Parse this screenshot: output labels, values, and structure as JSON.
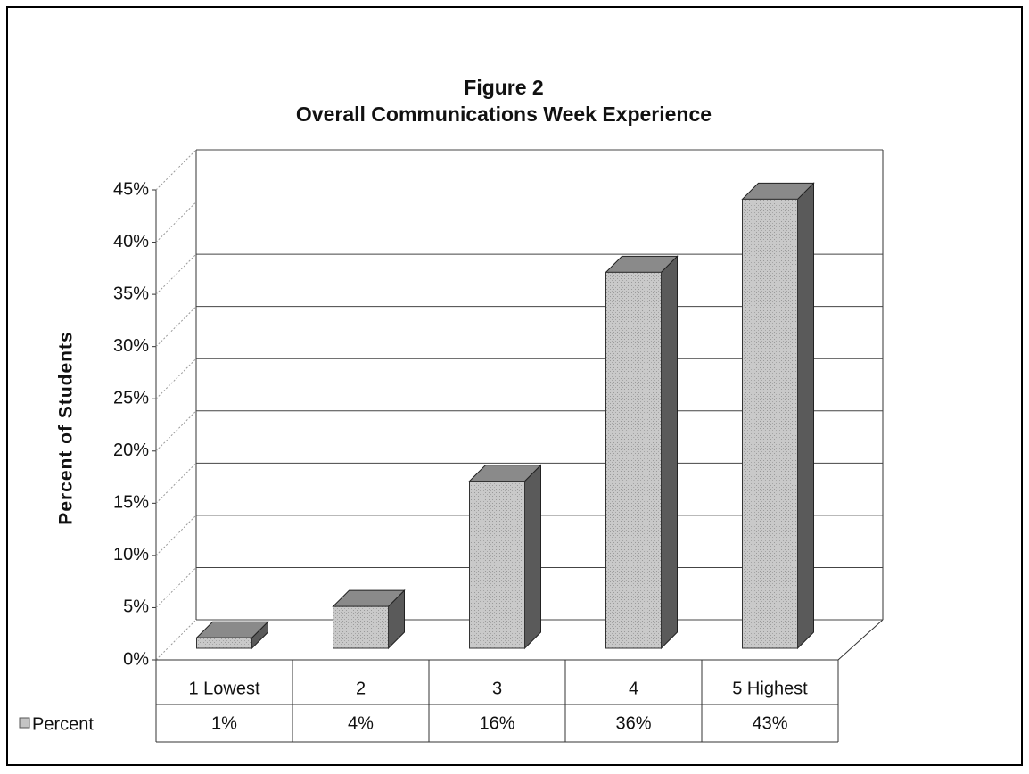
{
  "chart_data": {
    "type": "bar3d",
    "title": "Figure 2",
    "subtitle": "Overall Communications Week Experience",
    "y_label": "Percent of Students",
    "categories": [
      "1 Lowest",
      "2",
      "3",
      "4",
      "5 Highest"
    ],
    "series": [
      {
        "name": "Percent",
        "color": "#c4c4c4",
        "values": [
          1,
          4,
          16,
          36,
          43
        ],
        "value_labels": [
          "1%",
          "4%",
          "16%",
          "36%",
          "43%"
        ]
      }
    ],
    "ylim": [
      0,
      45
    ],
    "yticks": [
      {
        "value": 0,
        "label": "0%"
      },
      {
        "value": 5,
        "label": "5%"
      },
      {
        "value": 10,
        "label": "10%"
      },
      {
        "value": 15,
        "label": "15%"
      },
      {
        "value": 20,
        "label": "20%"
      },
      {
        "value": 25,
        "label": "25%"
      },
      {
        "value": 30,
        "label": "30%"
      },
      {
        "value": 35,
        "label": "35%"
      },
      {
        "value": 40,
        "label": "40%"
      },
      {
        "value": 45,
        "label": "45%"
      }
    ],
    "grid": true
  }
}
